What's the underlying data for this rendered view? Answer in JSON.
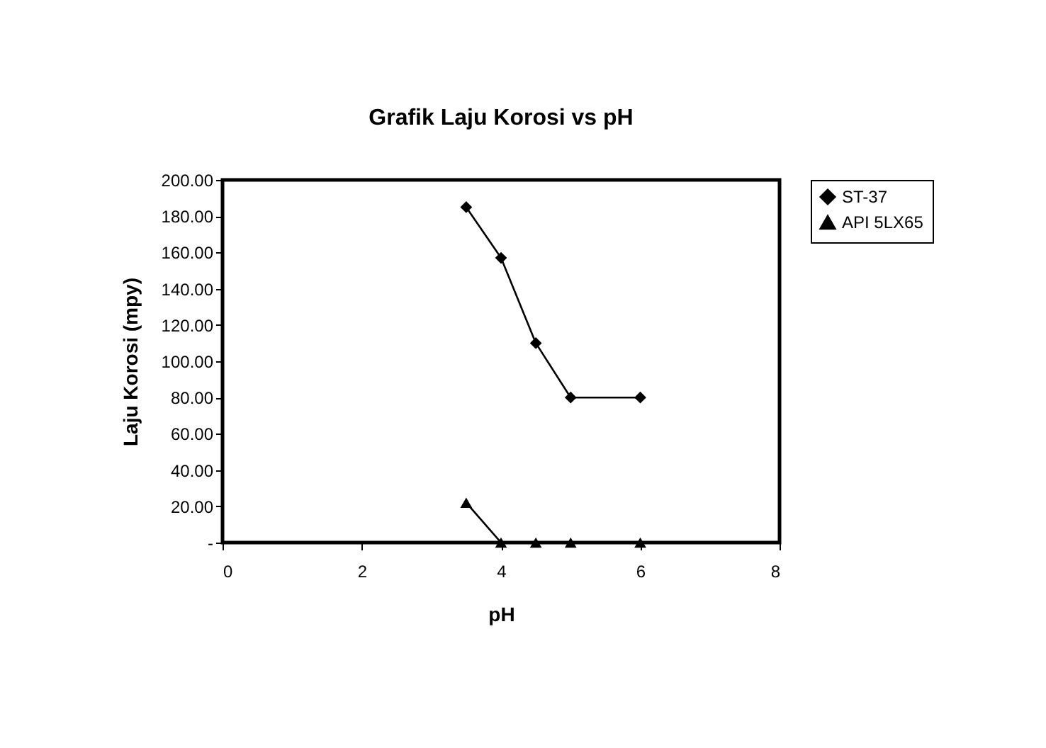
{
  "chart_data": {
    "type": "line",
    "title": "Grafik  Laju Korosi  vs  pH",
    "xlabel": "pH",
    "ylabel": "Laju Korosi (mpy)",
    "x": [
      3.5,
      4,
      4.5,
      5,
      6
    ],
    "series": [
      {
        "name": "ST-37",
        "color": "#000000",
        "marker": "diamond",
        "values": [
          185,
          157,
          110,
          80,
          80
        ]
      },
      {
        "name": "API 5LX65",
        "color": "#000000",
        "marker": "triangle",
        "values": [
          22,
          0,
          0,
          0,
          0
        ]
      }
    ],
    "xlim": [
      0,
      8
    ],
    "xticks": [
      0,
      2,
      4,
      6,
      8
    ],
    "ylim": [
      0,
      200
    ],
    "yticks": [
      {
        "value": 0,
        "label": "-"
      },
      {
        "value": 20,
        "label": "20.00"
      },
      {
        "value": 40,
        "label": "40.00"
      },
      {
        "value": 60,
        "label": "60.00"
      },
      {
        "value": 80,
        "label": "80.00"
      },
      {
        "value": 100,
        "label": "100.00"
      },
      {
        "value": 120,
        "label": "120.00"
      },
      {
        "value": 140,
        "label": "140.00"
      },
      {
        "value": 160,
        "label": "160.00"
      },
      {
        "value": 180,
        "label": "180.00"
      },
      {
        "value": 200,
        "label": "200.00"
      }
    ],
    "grid": false,
    "legend": "right",
    "line_style": "solid"
  }
}
